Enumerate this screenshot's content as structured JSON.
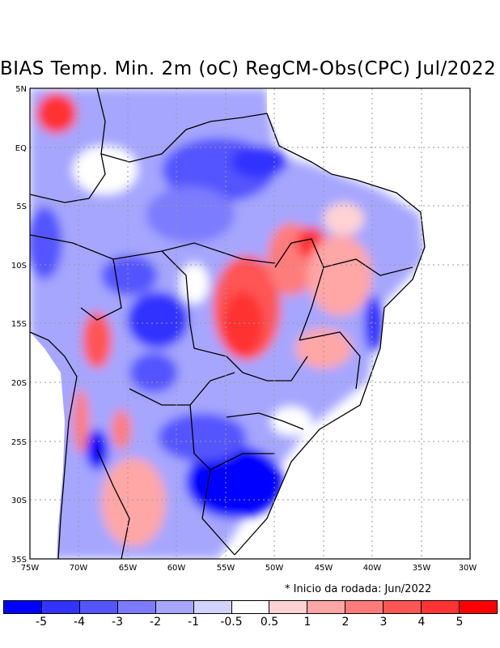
{
  "title": "BIAS Temp. Min. 2m (oC) RegCM-Obs(CPC) Jul/2022",
  "footnote": "* Inicio da rodada: Jun/2022",
  "lat_labels": [
    "5N",
    "EQ",
    "5S",
    "10S",
    "15S",
    "20S",
    "25S",
    "30S",
    "35S"
  ],
  "lon_labels": [
    "75W",
    "70W",
    "65W",
    "60W",
    "55W",
    "50W",
    "45W",
    "40W",
    "35W",
    "30W"
  ],
  "colorbar": {
    "colors": [
      "#0000ff",
      "#3333ff",
      "#5555ff",
      "#7b7bff",
      "#a6a6ff",
      "#d3d3ff",
      "#ffffff",
      "#ffd3d3",
      "#ffa6a6",
      "#ff7b7b",
      "#ff5555",
      "#ff3333",
      "#ff0000"
    ],
    "labels": [
      "-5",
      "-4",
      "-3",
      "-2",
      "-1",
      "-0.5",
      "0.5",
      "1",
      "2",
      "3",
      "4",
      "5"
    ]
  }
}
